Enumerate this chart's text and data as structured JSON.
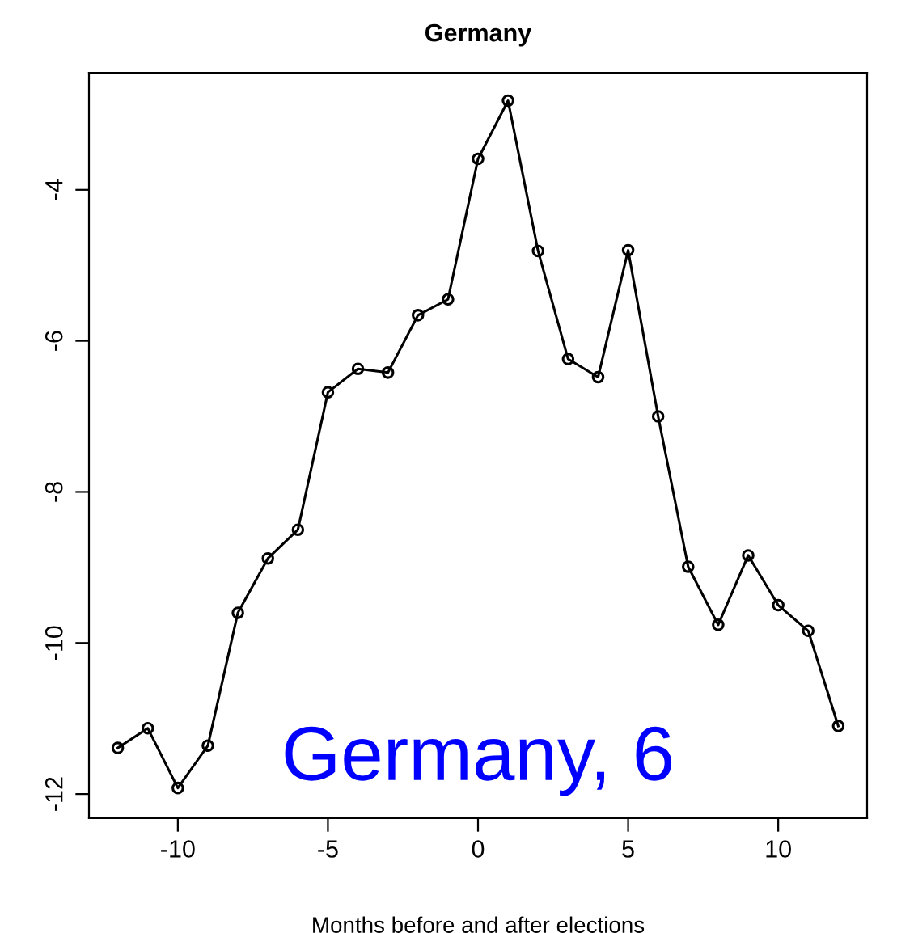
{
  "chart_data": {
    "type": "line",
    "title": "Germany",
    "xlabel": "Months before and after elections",
    "x": [
      -12,
      -11,
      -10,
      -9,
      -8,
      -7,
      -6,
      -5,
      -4,
      -3,
      -2,
      -1,
      0,
      1,
      2,
      3,
      4,
      5,
      6,
      7,
      8,
      9,
      10,
      11,
      12
    ],
    "series": [
      {
        "color": "#000000",
        "values": [
          -11.39,
          -11.13,
          -11.92,
          -11.36,
          -9.6,
          -8.88,
          -8.5,
          -6.68,
          -6.37,
          -6.42,
          -5.66,
          -5.45,
          -3.59,
          -2.82,
          -4.81,
          -6.24,
          -6.48,
          -4.8,
          -7.0,
          -8.99,
          -9.76,
          -8.84,
          -9.5,
          -9.84,
          -11.1
        ]
      }
    ],
    "xlim": [
      -12.96,
      12.96
    ],
    "xticks": [
      -10,
      -5,
      0,
      5,
      10
    ],
    "ylim": [
      -12.32,
      -2.45
    ],
    "yticks": [
      -12,
      -10,
      -8,
      -6,
      -4
    ],
    "marker": "circle",
    "line_style": "solid",
    "grid": false,
    "legend": false,
    "annotations": [
      "Germany, 6"
    ]
  }
}
